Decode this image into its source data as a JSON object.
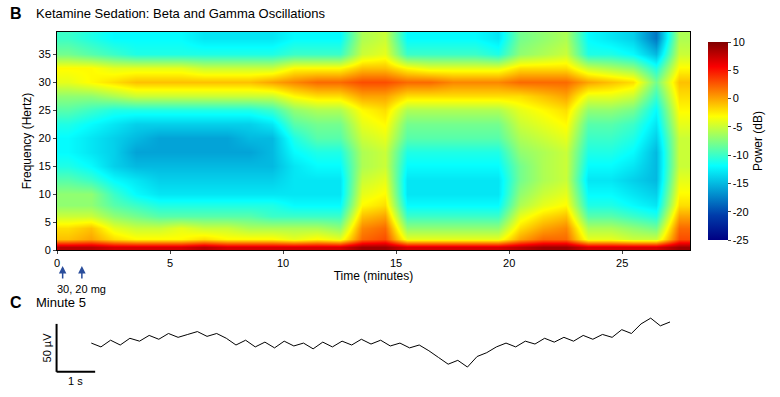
{
  "chart_data": [
    {
      "type": "heatmap",
      "panel": "B",
      "title": "Ketamine Sedation: Beta and Gamma Oscillations",
      "x_label": "Time (minutes)",
      "y_label": "Frequency (Hertz)",
      "x": [
        0.5,
        1.5,
        2.5,
        3.5,
        4.5,
        5.5,
        6.5,
        7.5,
        8.5,
        9.5,
        10.5,
        11.5,
        12.5,
        13.5,
        14.5,
        15.5,
        16.5,
        17.5,
        18.5,
        19.5,
        20.5,
        21.5,
        22.5,
        23.5,
        24.5,
        25.5,
        26.5,
        27.5
      ],
      "y": [
        0.5,
        2,
        4,
        6,
        8,
        10,
        12.5,
        15,
        17.5,
        20,
        22.5,
        25,
        27.5,
        30,
        32.5,
        35,
        38
      ],
      "z": [
        [
          8,
          8,
          7,
          7,
          7,
          7,
          8,
          7,
          7,
          7,
          7,
          7,
          7,
          9,
          9,
          7,
          7,
          7,
          7,
          7,
          8,
          9,
          9,
          7,
          7,
          7,
          7,
          9
        ],
        [
          -1,
          0,
          -2,
          -3,
          -3,
          -3,
          -2,
          -3,
          -3,
          -3,
          -4,
          -3,
          -4,
          2,
          3,
          -4,
          -4,
          -4,
          -4,
          -4,
          0,
          2,
          2,
          -4,
          -4,
          -5,
          -5,
          3
        ],
        [
          -2,
          -1,
          -4,
          -5,
          -5,
          -4,
          -5,
          -5,
          -6,
          -6,
          -6,
          -6,
          -7,
          1,
          2,
          -7,
          -7,
          -7,
          -7,
          -7,
          -2,
          0,
          1,
          -6,
          -6,
          -7,
          -8,
          2
        ],
        [
          -5,
          -5,
          -7,
          -8,
          -9,
          -9,
          -9,
          -9,
          -9,
          -10,
          -10,
          -10,
          -10,
          -1,
          0,
          -10,
          -10,
          -10,
          -10,
          -10,
          -4,
          -2,
          -1,
          -9,
          -9,
          -10,
          -11,
          0
        ],
        [
          -7,
          -7,
          -9,
          -10,
          -11,
          -11,
          -11,
          -11,
          -11,
          -11,
          -12,
          -12,
          -12,
          -3,
          -2,
          -12,
          -12,
          -12,
          -12,
          -12,
          -6,
          -4,
          -3,
          -11,
          -11,
          -12,
          -13,
          -2
        ],
        [
          -7,
          -7,
          -10,
          -12,
          -13,
          -13,
          -13,
          -13,
          -13,
          -13,
          -13,
          -13,
          -13,
          -4,
          -3,
          -13,
          -13,
          -13,
          -13,
          -13,
          -7,
          -5,
          -4,
          -12,
          -12,
          -13,
          -14,
          -3
        ],
        [
          -9,
          -10,
          -12,
          -13,
          -14,
          -14,
          -14,
          -14,
          -14,
          -14,
          -13,
          -13,
          -13,
          -5,
          -4,
          -13,
          -13,
          -13,
          -13,
          -13,
          -8,
          -6,
          -5,
          -13,
          -13,
          -14,
          -15,
          -4
        ],
        [
          -11,
          -12,
          -14,
          -15,
          -15,
          -15,
          -15,
          -15,
          -15,
          -15,
          -13,
          -12,
          -12,
          -6,
          -5,
          -12,
          -12,
          -12,
          -12,
          -12,
          -8,
          -6,
          -5,
          -12,
          -12,
          -13,
          -15,
          -5
        ],
        [
          -12,
          -13,
          -14,
          -16,
          -16,
          -16,
          -16,
          -16,
          -16,
          -15,
          -12,
          -11,
          -11,
          -6,
          -5,
          -11,
          -11,
          -11,
          -11,
          -11,
          -7,
          -6,
          -5,
          -11,
          -11,
          -12,
          -15,
          -5
        ],
        [
          -12,
          -13,
          -14,
          -15,
          -16,
          -16,
          -16,
          -16,
          -15,
          -15,
          -11,
          -9,
          -9,
          -5,
          -4,
          -9,
          -9,
          -9,
          -9,
          -9,
          -6,
          -5,
          -4,
          -10,
          -10,
          -11,
          -14,
          -5
        ],
        [
          -11,
          -12,
          -13,
          -14,
          -14,
          -14,
          -14,
          -14,
          -14,
          -13,
          -9,
          -8,
          -8,
          -4,
          -3,
          -8,
          -8,
          -8,
          -8,
          -8,
          -5,
          -4,
          -3,
          -9,
          -9,
          -10,
          -13,
          -4
        ],
        [
          -9,
          -10,
          -11,
          -11,
          -11,
          -11,
          -11,
          -11,
          -11,
          -10,
          -7,
          -6,
          -6,
          -3,
          -2,
          -6,
          -6,
          -6,
          -6,
          -6,
          -4,
          -3,
          -2,
          -7,
          -7,
          -8,
          -12,
          -3
        ],
        [
          -7,
          -7,
          -6,
          -5,
          -5,
          -5,
          -5,
          -5,
          -5,
          -5,
          -3,
          -2,
          -2,
          0,
          0,
          -2,
          -2,
          -2,
          -2,
          -2,
          -2,
          -1,
          0,
          -4,
          -4,
          -5,
          -10,
          -2
        ],
        [
          -4,
          -3,
          -2,
          -1,
          -1,
          -1,
          -1,
          -1,
          -1,
          0,
          1,
          2,
          2,
          3,
          3,
          2,
          2,
          1,
          1,
          1,
          2,
          2,
          2,
          0,
          -1,
          -2,
          -8,
          -1
        ],
        [
          -3,
          -3,
          -4,
          -4,
          -4,
          -4,
          -5,
          -5,
          -5,
          -5,
          -3,
          -3,
          -3,
          -1,
          -1,
          -3,
          -4,
          -4,
          -4,
          -4,
          -2,
          -2,
          -2,
          -5,
          -6,
          -7,
          -11,
          -3
        ],
        [
          -8,
          -9,
          -10,
          -11,
          -11,
          -11,
          -11,
          -11,
          -11,
          -11,
          -10,
          -10,
          -10,
          -5,
          -4,
          -10,
          -10,
          -10,
          -10,
          -11,
          -7,
          -6,
          -5,
          -11,
          -11,
          -12,
          -15,
          -5
        ],
        [
          -10,
          -11,
          -12,
          -12,
          -12,
          -12,
          -13,
          -13,
          -13,
          -13,
          -12,
          -12,
          -12,
          -6,
          -5,
          -12,
          -12,
          -12,
          -12,
          -13,
          -8,
          -7,
          -6,
          -12,
          -13,
          -14,
          -18,
          -6
        ]
      ],
      "xlim": [
        0,
        28
      ],
      "ylim": [
        0,
        39
      ],
      "xticks": [
        0,
        5,
        10,
        15,
        20,
        25
      ],
      "yticks": [
        0,
        5,
        10,
        15,
        20,
        25,
        30,
        35
      ],
      "color": "Jet",
      "colorbar": {
        "title": "Power (dB)",
        "range": [
          -25,
          10
        ],
        "ticks": [
          -25,
          -20,
          -15,
          -10,
          -5,
          0,
          5,
          10
        ]
      },
      "annotations": [
        {
          "text": "30, 20 mg",
          "x": [
            0.25,
            1.1
          ]
        }
      ]
    },
    {
      "type": "line",
      "panel": "C",
      "title": "Minute 5",
      "x": [
        0,
        0.25,
        0.5,
        0.75,
        1,
        1.25,
        1.5,
        1.75,
        2,
        2.25,
        2.5,
        2.75,
        3,
        3.25,
        3.5,
        3.75,
        4,
        4.25,
        4.5,
        4.75,
        5,
        5.25,
        5.5,
        5.75,
        6,
        6.25,
        6.5,
        6.75,
        7,
        7.25,
        7.5,
        7.75,
        8,
        8.25,
        8.5,
        8.75,
        9,
        9.25,
        9.5,
        9.75,
        10,
        10.25,
        10.5,
        10.75,
        11,
        11.25,
        11.5,
        11.75,
        12,
        12.25,
        12.5,
        12.75,
        13,
        13.25,
        13.5,
        13.75,
        14,
        14.25,
        14.5,
        14.75,
        15
      ],
      "values": [
        0,
        -4,
        3,
        -2,
        5,
        2,
        8,
        4,
        10,
        6,
        9,
        12,
        7,
        10,
        5,
        -2,
        3,
        -4,
        1,
        -5,
        2,
        -3,
        0,
        -6,
        1,
        -4,
        2,
        -2,
        4,
        -1,
        3,
        -3,
        0,
        -5,
        -2,
        -8,
        -15,
        -22,
        -18,
        -25,
        -14,
        -10,
        -4,
        0,
        -4,
        2,
        -1,
        5,
        1,
        6,
        2,
        8,
        4,
        9,
        6,
        14,
        10,
        20,
        26,
        18,
        22
      ],
      "color": "#000000",
      "tick_labels": false,
      "scale_bar": {
        "x": 1,
        "x_label": "1 s",
        "y": 50,
        "y_label": "50 µV"
      }
    }
  ]
}
